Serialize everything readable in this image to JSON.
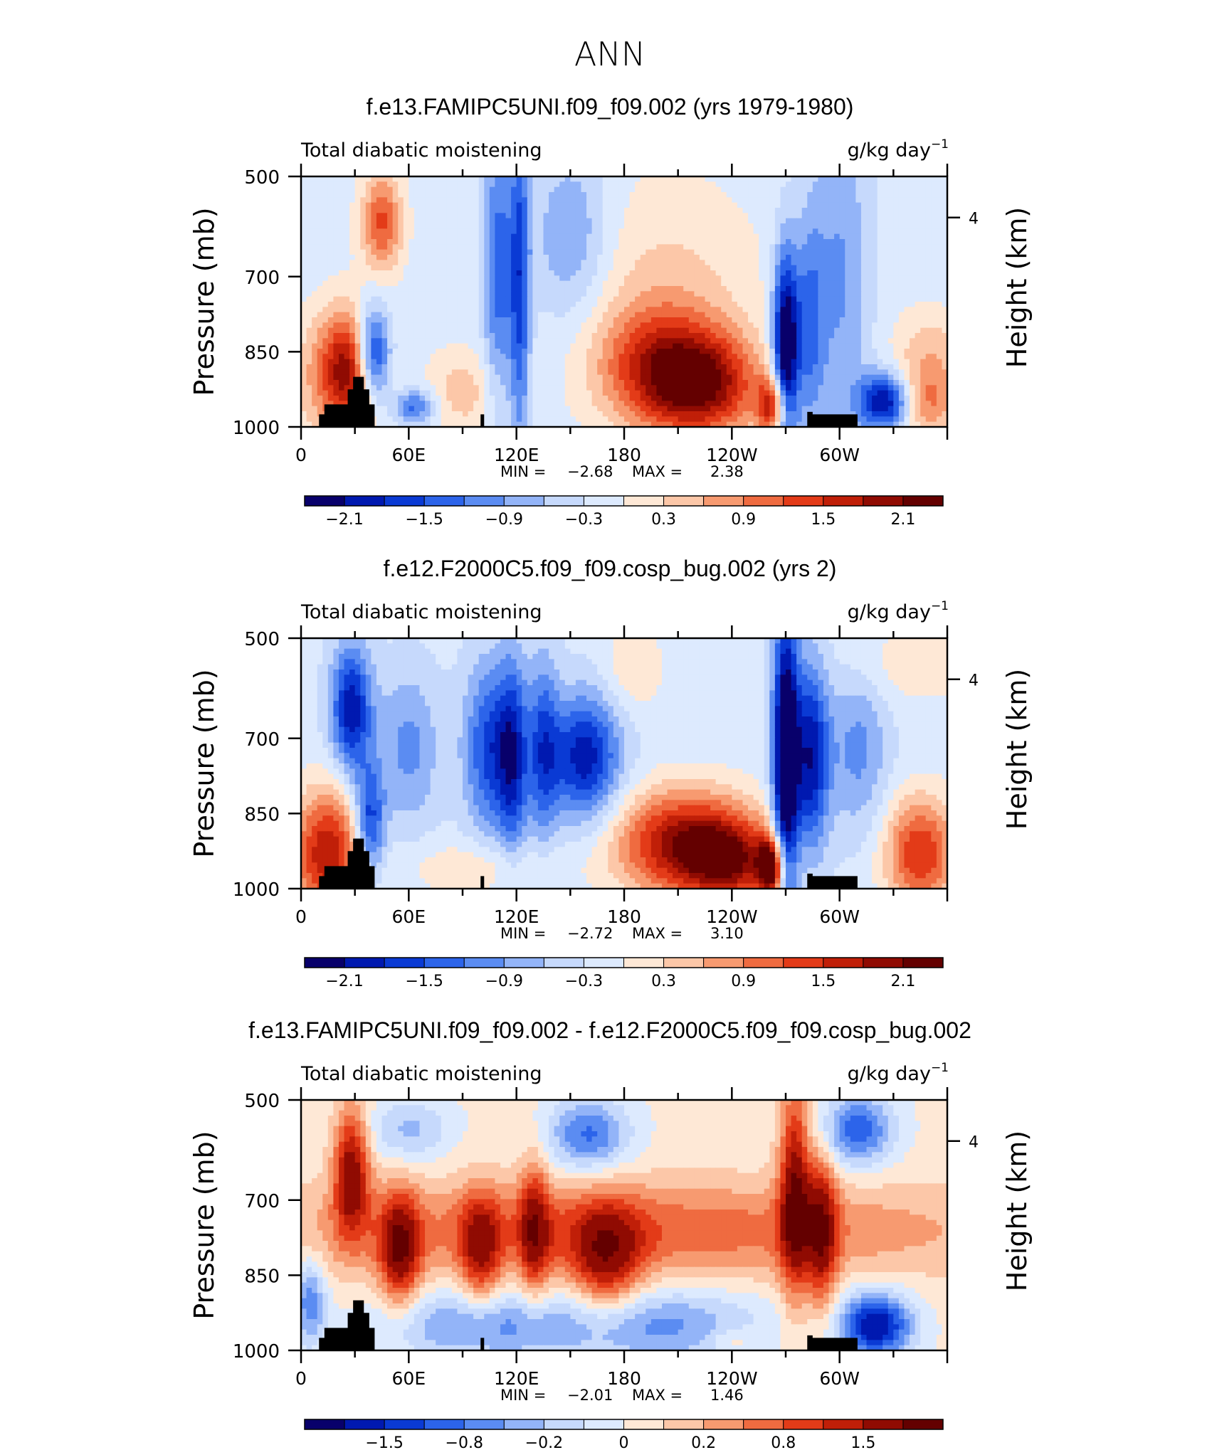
{
  "page_title": "ANN",
  "colors": {
    "palette": [
      "#08006b",
      "#0019b0",
      "#0a3ad4",
      "#2c64ea",
      "#5b8cf2",
      "#93b4f8",
      "#c6d9fc",
      "#ddeafe",
      "#fee8d6",
      "#fcc7a8",
      "#f79a70",
      "#ef6b40",
      "#e33b18",
      "#c01f08",
      "#900b02",
      "#640000"
    ],
    "terrain": "#000000"
  },
  "chart_data": [
    {
      "type": "heatmap",
      "title": "f.e13.FAMIPC5UNI.f09_f09.002 (yrs 1979-1980)",
      "left_label": "Total diabatic moistening",
      "units": "g/kg day",
      "units_exp": "−1",
      "ylabel": "Pressure (mb)",
      "ylabel_right": "Height (km)",
      "y_ticks": [
        "500",
        "700",
        "850",
        "1000"
      ],
      "y_ticks_right": [
        "4"
      ],
      "x_ticks": [
        "0",
        "60E",
        "120E",
        "180",
        "120W",
        "60W"
      ],
      "min_label": "MIN =",
      "min_value": "−2.68",
      "max_label": "MAX =",
      "max_value": "2.38",
      "colorbar_labels": [
        "−2.1",
        "−1.5",
        "−0.9",
        "−0.3",
        "0.3",
        "0.9",
        "1.5",
        "2.1"
      ],
      "features": [
        {
          "lon": 45,
          "p": 590,
          "dl": 8,
          "dp": 70,
          "v": 1.4
        },
        {
          "lon": 40,
          "p": 860,
          "dl": 7,
          "dp": 70,
          "v": -2.5
        },
        {
          "lon": 30,
          "p": 880,
          "dl": 12,
          "dp": 80,
          "v": 1.5
        },
        {
          "lon": 20,
          "p": 900,
          "dl": 16,
          "dp": 90,
          "v": 1.0
        },
        {
          "lon": 63,
          "p": 960,
          "dl": 8,
          "dp": 25,
          "v": -1.2
        },
        {
          "lon": 90,
          "p": 930,
          "dl": 14,
          "dp": 60,
          "v": 0.6
        },
        {
          "lon": 110,
          "p": 680,
          "dl": 6,
          "dp": 200,
          "v": -1.2
        },
        {
          "lon": 122,
          "p": 720,
          "dl": 4,
          "dp": 240,
          "v": -1.4
        },
        {
          "lon": 150,
          "p": 620,
          "dl": 15,
          "dp": 120,
          "v": -0.8
        },
        {
          "lon": 200,
          "p": 880,
          "dl": 25,
          "dp": 85,
          "v": 1.5
        },
        {
          "lon": 225,
          "p": 920,
          "dl": 22,
          "dp": 70,
          "v": 1.7
        },
        {
          "lon": 205,
          "p": 720,
          "dl": 35,
          "dp": 150,
          "v": 0.5
        },
        {
          "lon": 270,
          "p": 850,
          "dl": 5,
          "dp": 140,
          "v": -2.6
        },
        {
          "lon": 263,
          "p": 960,
          "dl": 6,
          "dp": 40,
          "v": 1.8
        },
        {
          "lon": 283,
          "p": 800,
          "dl": 6,
          "dp": 150,
          "v": -1.0
        },
        {
          "lon": 300,
          "p": 700,
          "dl": 12,
          "dp": 250,
          "v": -0.8
        },
        {
          "lon": 325,
          "p": 950,
          "dl": 10,
          "dp": 40,
          "v": -2.0
        },
        {
          "lon": 350,
          "p": 850,
          "dl": 15,
          "dp": 60,
          "v": 0.6
        },
        {
          "lon": 350,
          "p": 950,
          "dl": 12,
          "dp": 50,
          "v": 1.0
        }
      ]
    },
    {
      "type": "heatmap",
      "title": "f.e12.F2000C5.f09_f09.cosp_bug.002 (yrs 2)",
      "left_label": "Total diabatic moistening",
      "units": "g/kg day",
      "units_exp": "−1",
      "ylabel": "Pressure (mb)",
      "ylabel_right": "Height (km)",
      "y_ticks": [
        "500",
        "700",
        "850",
        "1000"
      ],
      "y_ticks_right": [
        "4"
      ],
      "x_ticks": [
        "0",
        "60E",
        "120E",
        "180",
        "120W",
        "60W"
      ],
      "min_label": "MIN =",
      "min_value": "−2.72",
      "max_label": "MAX =",
      "max_value": "3.10",
      "colorbar_labels": [
        "−2.1",
        "−1.5",
        "−0.9",
        "−0.3",
        "0.3",
        "0.9",
        "1.5",
        "2.1"
      ],
      "features": [
        {
          "lon": 28,
          "p": 640,
          "dl": 8,
          "dp": 90,
          "v": -1.8
        },
        {
          "lon": 38,
          "p": 870,
          "dl": 6,
          "dp": 80,
          "v": -1.6
        },
        {
          "lon": 15,
          "p": 930,
          "dl": 14,
          "dp": 90,
          "v": 2.0
        },
        {
          "lon": 60,
          "p": 720,
          "dl": 12,
          "dp": 110,
          "v": -0.8
        },
        {
          "lon": 105,
          "p": 720,
          "dl": 10,
          "dp": 120,
          "v": -1.4
        },
        {
          "lon": 118,
          "p": 740,
          "dl": 6,
          "dp": 140,
          "v": -1.4
        },
        {
          "lon": 135,
          "p": 720,
          "dl": 6,
          "dp": 130,
          "v": -1.2
        },
        {
          "lon": 158,
          "p": 740,
          "dl": 14,
          "dp": 90,
          "v": -1.8
        },
        {
          "lon": 185,
          "p": 560,
          "dl": 12,
          "dp": 60,
          "v": 0.5
        },
        {
          "lon": 215,
          "p": 910,
          "dl": 28,
          "dp": 75,
          "v": 2.2
        },
        {
          "lon": 240,
          "p": 950,
          "dl": 18,
          "dp": 55,
          "v": 1.4
        },
        {
          "lon": 270,
          "p": 760,
          "dl": 5,
          "dp": 230,
          "v": -2.7
        },
        {
          "lon": 262,
          "p": 960,
          "dl": 5,
          "dp": 40,
          "v": 2.5
        },
        {
          "lon": 284,
          "p": 740,
          "dl": 7,
          "dp": 140,
          "v": -1.8
        },
        {
          "lon": 310,
          "p": 720,
          "dl": 12,
          "dp": 120,
          "v": -0.8
        },
        {
          "lon": 340,
          "p": 550,
          "dl": 30,
          "dp": 60,
          "v": 0.4
        },
        {
          "lon": 345,
          "p": 930,
          "dl": 14,
          "dp": 80,
          "v": 1.7
        },
        {
          "lon": 100,
          "p": 960,
          "dl": 30,
          "dp": 40,
          "v": 0.5
        }
      ]
    },
    {
      "type": "heatmap",
      "title": "f.e13.FAMIPC5UNI.f09_f09.002 - f.e12.F2000C5.f09_f09.cosp_bug.002",
      "left_label": "Total diabatic moistening",
      "units": "g/kg day",
      "units_exp": "−1",
      "ylabel": "Pressure (mb)",
      "ylabel_right": "Height (km)",
      "y_ticks": [
        "500",
        "700",
        "850",
        "1000"
      ],
      "y_ticks_right": [
        "4"
      ],
      "x_ticks": [
        "0",
        "60E",
        "120E",
        "180",
        "120W",
        "60W"
      ],
      "min_label": "MIN =",
      "min_value": "−2.01",
      "max_label": "MAX =",
      "max_value": "1.46",
      "colorbar_labels": [
        "−1.5",
        "−0.8",
        "−0.2",
        "0",
        "0.2",
        "0.8",
        "1.5"
      ],
      "features": [
        {
          "lon": 180,
          "p": 760,
          "dl": 150,
          "dp": 70,
          "v": 0.7
        },
        {
          "lon": 28,
          "p": 640,
          "dl": 7,
          "dp": 90,
          "v": 1.3
        },
        {
          "lon": 55,
          "p": 800,
          "dl": 8,
          "dp": 80,
          "v": 1.2
        },
        {
          "lon": 100,
          "p": 800,
          "dl": 8,
          "dp": 80,
          "v": 0.9
        },
        {
          "lon": 170,
          "p": 820,
          "dl": 14,
          "dp": 80,
          "v": 1.0
        },
        {
          "lon": 130,
          "p": 760,
          "dl": 6,
          "dp": 100,
          "v": 0.9
        },
        {
          "lon": 160,
          "p": 570,
          "dl": 16,
          "dp": 50,
          "v": -0.9
        },
        {
          "lon": 60,
          "p": 560,
          "dl": 16,
          "dp": 45,
          "v": -0.5
        },
        {
          "lon": 310,
          "p": 560,
          "dl": 14,
          "dp": 50,
          "v": -1.0
        },
        {
          "lon": 275,
          "p": 680,
          "dl": 6,
          "dp": 150,
          "v": 1.3
        },
        {
          "lon": 290,
          "p": 760,
          "dl": 6,
          "dp": 110,
          "v": 1.1
        },
        {
          "lon": 200,
          "p": 950,
          "dl": 40,
          "dp": 55,
          "v": -0.7
        },
        {
          "lon": 100,
          "p": 950,
          "dl": 40,
          "dp": 50,
          "v": -0.7
        },
        {
          "lon": 320,
          "p": 950,
          "dl": 14,
          "dp": 45,
          "v": -1.5
        },
        {
          "lon": 240,
          "p": 980,
          "dl": 10,
          "dp": 20,
          "v": 0.3
        },
        {
          "lon": 5,
          "p": 900,
          "dl": 6,
          "dp": 60,
          "v": -0.8
        }
      ]
    }
  ]
}
